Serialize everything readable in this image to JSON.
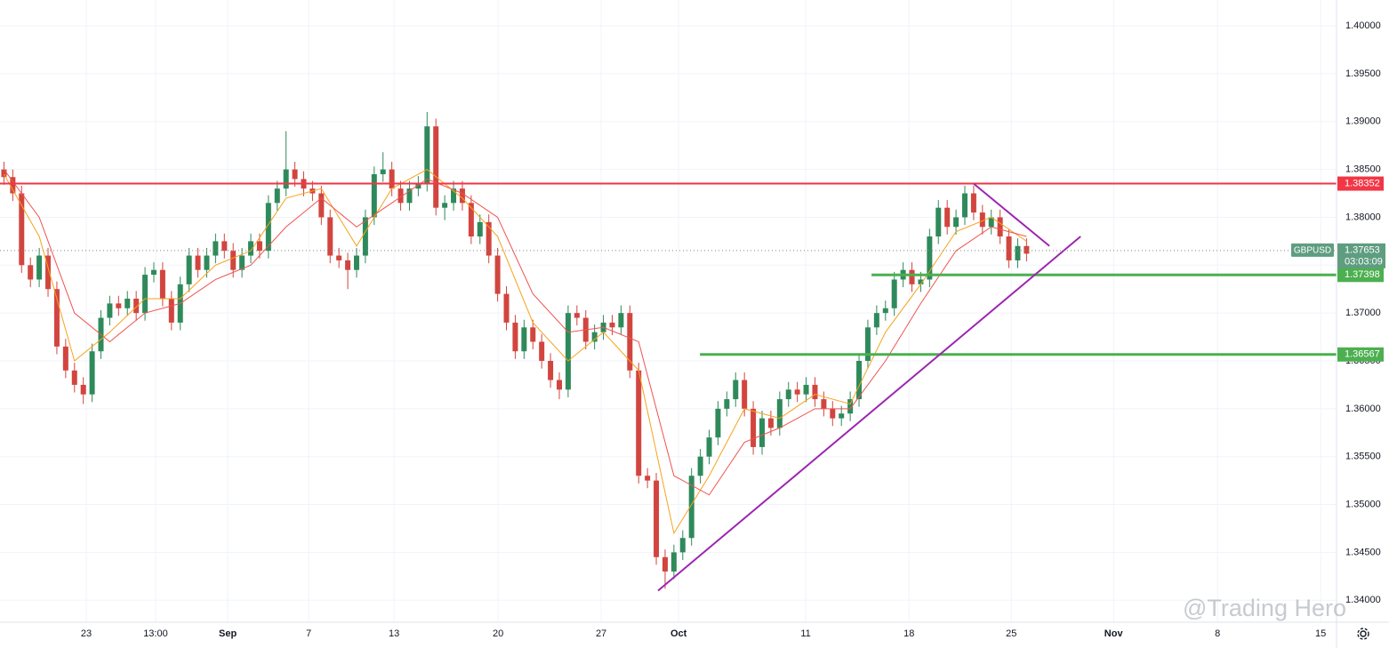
{
  "chart_data": {
    "type": "candlestick",
    "symbol": "GBPUSD",
    "countdown": "03:03:09",
    "last_price": 1.37653,
    "watermark": "@Trading Hero",
    "xlim": [
      17.13,
      108.1
    ],
    "ylim": [
      1.3377,
      1.4027
    ],
    "grid": true,
    "up_color": "#2f8a5b",
    "down_color": "#d2453f",
    "xticks": [
      {
        "value": 23,
        "label": "23"
      },
      {
        "value": 27.72,
        "label": "13:00"
      },
      {
        "value": 32.63,
        "label": "Sep"
      },
      {
        "value": 38.14,
        "label": "7"
      },
      {
        "value": 43.95,
        "label": "13"
      },
      {
        "value": 51.03,
        "label": "20"
      },
      {
        "value": 58.05,
        "label": "27"
      },
      {
        "value": 63.32,
        "label": "Oct"
      },
      {
        "value": 71.97,
        "label": "11"
      },
      {
        "value": 79,
        "label": "18"
      },
      {
        "value": 85.96,
        "label": "25"
      },
      {
        "value": 92.92,
        "label": "Nov"
      },
      {
        "value": 100,
        "label": "8"
      },
      {
        "value": 107.02,
        "label": "15"
      }
    ],
    "yticks": [
      {
        "value": 1.34,
        "label": "1.34000"
      },
      {
        "value": 1.345,
        "label": "1.34500"
      },
      {
        "value": 1.35,
        "label": "1.35000"
      },
      {
        "value": 1.355,
        "label": "1.35500"
      },
      {
        "value": 1.36,
        "label": "1.36000"
      },
      {
        "value": 1.365,
        "label": "1.36500"
      },
      {
        "value": 1.37,
        "label": "1.37000"
      },
      {
        "value": 1.375,
        "label": "1.37500"
      },
      {
        "value": 1.38,
        "label": "1.38000"
      },
      {
        "value": 1.385,
        "label": "1.38500"
      },
      {
        "value": 1.39,
        "label": "1.39000"
      },
      {
        "value": 1.395,
        "label": "1.39500"
      },
      {
        "value": 1.4,
        "label": "1.40000"
      }
    ],
    "candles": [
      [
        17.4,
        1.385,
        1.3858,
        1.3834,
        1.3842
      ],
      [
        18,
        1.3842,
        1.385,
        1.3817,
        1.3825
      ],
      [
        18.6,
        1.3825,
        1.3833,
        1.3742,
        1.375
      ],
      [
        19.2,
        1.375,
        1.3758,
        1.3727,
        1.3735
      ],
      [
        19.8,
        1.3735,
        1.3768,
        1.3727,
        1.376
      ],
      [
        20.4,
        1.376,
        1.3768,
        1.3717,
        1.3725
      ],
      [
        21,
        1.3725,
        1.3733,
        1.3657,
        1.3665
      ],
      [
        21.6,
        1.3665,
        1.3673,
        1.3632,
        1.364
      ],
      [
        22.2,
        1.364,
        1.3648,
        1.3617,
        1.3625
      ],
      [
        22.8,
        1.3625,
        1.3633,
        1.3605,
        1.3615
      ],
      [
        23.4,
        1.3615,
        1.3668,
        1.3607,
        1.366
      ],
      [
        24,
        1.366,
        1.3703,
        1.3652,
        1.3695
      ],
      [
        24.6,
        1.3695,
        1.3718,
        1.3687,
        1.371
      ],
      [
        25.2,
        1.371,
        1.3718,
        1.3697,
        1.3705
      ],
      [
        25.8,
        1.3705,
        1.3723,
        1.3697,
        1.3715
      ],
      [
        26.4,
        1.3715,
        1.3723,
        1.3692,
        1.37
      ],
      [
        27,
        1.37,
        1.3748,
        1.3692,
        1.374
      ],
      [
        27.6,
        1.374,
        1.3753,
        1.3732,
        1.3745
      ],
      [
        28.2,
        1.3745,
        1.3753,
        1.3707,
        1.3715
      ],
      [
        28.8,
        1.3715,
        1.3723,
        1.3682,
        1.369
      ],
      [
        29.4,
        1.369,
        1.3738,
        1.3682,
        1.373
      ],
      [
        30,
        1.373,
        1.3768,
        1.3722,
        1.376
      ],
      [
        30.6,
        1.376,
        1.3768,
        1.3737,
        1.3745
      ],
      [
        31.2,
        1.3745,
        1.3768,
        1.3737,
        1.376
      ],
      [
        31.8,
        1.376,
        1.3783,
        1.3752,
        1.3775
      ],
      [
        32.4,
        1.3775,
        1.3783,
        1.3757,
        1.3765
      ],
      [
        33,
        1.3765,
        1.3773,
        1.3737,
        1.3745
      ],
      [
        33.6,
        1.3745,
        1.3768,
        1.3737,
        1.376
      ],
      [
        34.2,
        1.376,
        1.3783,
        1.3752,
        1.3775
      ],
      [
        34.8,
        1.3775,
        1.3783,
        1.3757,
        1.3765
      ],
      [
        35.4,
        1.3765,
        1.3823,
        1.3757,
        1.3815
      ],
      [
        36,
        1.3815,
        1.3838,
        1.3807,
        1.383
      ],
      [
        36.6,
        1.383,
        1.389,
        1.3822,
        1.385
      ],
      [
        37.2,
        1.385,
        1.3858,
        1.3832,
        1.384
      ],
      [
        37.8,
        1.384,
        1.3848,
        1.3822,
        1.383
      ],
      [
        38.4,
        1.383,
        1.3838,
        1.3817,
        1.3825
      ],
      [
        39,
        1.3825,
        1.3833,
        1.3792,
        1.38
      ],
      [
        39.6,
        1.38,
        1.3808,
        1.3752,
        1.376
      ],
      [
        40.2,
        1.376,
        1.3768,
        1.3747,
        1.3755
      ],
      [
        40.8,
        1.3755,
        1.3763,
        1.3725,
        1.3745
      ],
      [
        41.4,
        1.3745,
        1.3768,
        1.3737,
        1.376
      ],
      [
        42,
        1.376,
        1.3808,
        1.3752,
        1.38
      ],
      [
        42.6,
        1.38,
        1.3853,
        1.3792,
        1.3845
      ],
      [
        43.2,
        1.3845,
        1.3868,
        1.3837,
        1.385
      ],
      [
        43.8,
        1.385,
        1.3858,
        1.3822,
        1.383
      ],
      [
        44.4,
        1.383,
        1.3838,
        1.3807,
        1.3815
      ],
      [
        45,
        1.3815,
        1.3838,
        1.3807,
        1.383
      ],
      [
        45.6,
        1.383,
        1.3843,
        1.3822,
        1.3835
      ],
      [
        46.2,
        1.3835,
        1.391,
        1.3827,
        1.3895
      ],
      [
        46.8,
        1.3895,
        1.3903,
        1.3802,
        1.381
      ],
      [
        47.4,
        1.381,
        1.3823,
        1.3797,
        1.3815
      ],
      [
        48,
        1.3815,
        1.3838,
        1.3807,
        1.383
      ],
      [
        48.6,
        1.383,
        1.3838,
        1.3807,
        1.3815
      ],
      [
        49.2,
        1.3815,
        1.3823,
        1.3772,
        1.378
      ],
      [
        49.8,
        1.378,
        1.3803,
        1.3772,
        1.3795
      ],
      [
        50.4,
        1.3795,
        1.3803,
        1.3752,
        1.376
      ],
      [
        51,
        1.376,
        1.3768,
        1.3712,
        1.372
      ],
      [
        51.6,
        1.372,
        1.3728,
        1.3682,
        1.369
      ],
      [
        52.2,
        1.369,
        1.3698,
        1.3652,
        1.366
      ],
      [
        52.8,
        1.366,
        1.3693,
        1.3652,
        1.3685
      ],
      [
        53.4,
        1.3685,
        1.3693,
        1.3662,
        1.367
      ],
      [
        54,
        1.367,
        1.3678,
        1.3642,
        1.365
      ],
      [
        54.6,
        1.365,
        1.3658,
        1.3622,
        1.363
      ],
      [
        55.2,
        1.363,
        1.3638,
        1.361,
        1.362
      ],
      [
        55.8,
        1.362,
        1.3708,
        1.3612,
        1.37
      ],
      [
        56.4,
        1.37,
        1.3708,
        1.3687,
        1.3695
      ],
      [
        57,
        1.3695,
        1.3703,
        1.3662,
        1.367
      ],
      [
        57.6,
        1.367,
        1.3688,
        1.3662,
        1.368
      ],
      [
        58.2,
        1.368,
        1.3698,
        1.3672,
        1.369
      ],
      [
        58.8,
        1.369,
        1.3698,
        1.3677,
        1.3685
      ],
      [
        59.4,
        1.3685,
        1.3708,
        1.3677,
        1.37
      ],
      [
        60,
        1.37,
        1.3708,
        1.3632,
        1.364
      ],
      [
        60.6,
        1.364,
        1.3648,
        1.3522,
        1.353
      ],
      [
        61.2,
        1.353,
        1.3538,
        1.3517,
        1.3525
      ],
      [
        61.8,
        1.3525,
        1.3533,
        1.3437,
        1.3445
      ],
      [
        62.4,
        1.3445,
        1.3453,
        1.3412,
        1.343
      ],
      [
        63,
        1.343,
        1.3458,
        1.3422,
        1.345
      ],
      [
        63.6,
        1.345,
        1.3473,
        1.3442,
        1.3465
      ],
      [
        64.2,
        1.3465,
        1.3538,
        1.3457,
        1.353
      ],
      [
        64.8,
        1.353,
        1.3558,
        1.3522,
        1.355
      ],
      [
        65.4,
        1.355,
        1.3578,
        1.3542,
        1.357
      ],
      [
        66,
        1.357,
        1.3608,
        1.3562,
        1.36
      ],
      [
        66.6,
        1.36,
        1.3618,
        1.3592,
        1.361
      ],
      [
        67.2,
        1.361,
        1.3638,
        1.3602,
        1.363
      ],
      [
        67.8,
        1.363,
        1.3638,
        1.3592,
        1.36
      ],
      [
        68.4,
        1.36,
        1.3608,
        1.3552,
        1.356
      ],
      [
        69,
        1.356,
        1.3598,
        1.3552,
        1.359
      ],
      [
        69.6,
        1.359,
        1.3598,
        1.3572,
        1.358
      ],
      [
        70.2,
        1.358,
        1.3618,
        1.3572,
        1.361
      ],
      [
        70.8,
        1.361,
        1.3628,
        1.3602,
        1.362
      ],
      [
        71.4,
        1.362,
        1.3628,
        1.3607,
        1.3615
      ],
      [
        72,
        1.3615,
        1.3633,
        1.3607,
        1.3625
      ],
      [
        72.6,
        1.3625,
        1.3633,
        1.3602,
        1.361
      ],
      [
        73.2,
        1.361,
        1.3618,
        1.3592,
        1.36
      ],
      [
        73.8,
        1.36,
        1.3608,
        1.3582,
        1.359
      ],
      [
        74.4,
        1.359,
        1.3603,
        1.3582,
        1.3595
      ],
      [
        75,
        1.3595,
        1.3618,
        1.3587,
        1.361
      ],
      [
        75.6,
        1.361,
        1.3658,
        1.3602,
        1.365
      ],
      [
        76.2,
        1.365,
        1.3693,
        1.3642,
        1.3685
      ],
      [
        76.8,
        1.3685,
        1.3708,
        1.3677,
        1.37
      ],
      [
        77.4,
        1.37,
        1.3713,
        1.3692,
        1.3705
      ],
      [
        78,
        1.3705,
        1.3743,
        1.3697,
        1.3735
      ],
      [
        78.6,
        1.3735,
        1.3753,
        1.3727,
        1.3745
      ],
      [
        79.2,
        1.3745,
        1.3753,
        1.3722,
        1.373
      ],
      [
        79.8,
        1.373,
        1.3743,
        1.3722,
        1.3735
      ],
      [
        80.4,
        1.3735,
        1.3788,
        1.3727,
        1.378
      ],
      [
        81,
        1.378,
        1.3818,
        1.3772,
        1.381
      ],
      [
        81.6,
        1.381,
        1.3818,
        1.3782,
        1.379
      ],
      [
        82.2,
        1.379,
        1.3808,
        1.3782,
        1.38
      ],
      [
        82.8,
        1.38,
        1.3833,
        1.3792,
        1.3825
      ],
      [
        83.4,
        1.3825,
        1.3833,
        1.3797,
        1.3805
      ],
      [
        84,
        1.3805,
        1.3813,
        1.3782,
        1.379
      ],
      [
        84.6,
        1.379,
        1.3808,
        1.3782,
        1.38
      ],
      [
        85.2,
        1.38,
        1.3808,
        1.3772,
        1.378
      ],
      [
        85.8,
        1.378,
        1.3788,
        1.3747,
        1.3755
      ],
      [
        86.4,
        1.3755,
        1.3778,
        1.3747,
        1.377
      ],
      [
        87,
        1.377,
        1.3778,
        1.3754,
        1.3762
      ]
    ],
    "lines": [
      {
        "color": "#f7a21b",
        "x": [
          17.4,
          19.8,
          22.2,
          24.6,
          27,
          29.4,
          31.8,
          34.2,
          36.6,
          39,
          41.4,
          43.8,
          46.2,
          48.6,
          51,
          53.4,
          55.8,
          58.2,
          60.6,
          63,
          65.4,
          67.8,
          70.2,
          72.6,
          75,
          77.4,
          79.8,
          82.2,
          84.6,
          87
        ],
        "values": [
          1.3845,
          1.378,
          1.365,
          1.368,
          1.3715,
          1.3715,
          1.375,
          1.3765,
          1.382,
          1.383,
          1.377,
          1.383,
          1.385,
          1.382,
          1.378,
          1.369,
          1.365,
          1.368,
          1.364,
          1.347,
          1.353,
          1.36,
          1.359,
          1.3615,
          1.3605,
          1.368,
          1.373,
          1.3785,
          1.38,
          1.3775
        ]
      },
      {
        "color": "#ef5350",
        "x": [
          17.4,
          19.8,
          22.2,
          24.6,
          27,
          29.4,
          31.8,
          34.2,
          36.6,
          39,
          41.4,
          43.8,
          46.2,
          48.6,
          51,
          53.4,
          55.8,
          58.2,
          60.6,
          63,
          65.4,
          67.8,
          70.2,
          72.6,
          75,
          77.4,
          79.8,
          82.2,
          84.6,
          87
        ],
        "values": [
          1.385,
          1.38,
          1.37,
          1.367,
          1.37,
          1.371,
          1.3735,
          1.375,
          1.379,
          1.382,
          1.379,
          1.3815,
          1.384,
          1.3825,
          1.38,
          1.372,
          1.368,
          1.3685,
          1.367,
          1.353,
          1.351,
          1.3565,
          1.358,
          1.36,
          1.36,
          1.365,
          1.371,
          1.3765,
          1.379,
          1.378
        ]
      }
    ],
    "levels": [
      {
        "value": 1.38352,
        "color": "#f23645",
        "x_start": 17.13
      },
      {
        "value": 1.37398,
        "color": "#4caf50",
        "x_start": 76.45
      },
      {
        "value": 1.36567,
        "color": "#4caf50",
        "x_start": 64.77
      }
    ],
    "trendlines": [
      {
        "color": "#9c27b0",
        "x": [
          61.92,
          90.68
        ],
        "values": [
          1.341,
          1.378
        ]
      },
      {
        "color": "#9c27b0",
        "x": [
          83.41,
          88.56
        ],
        "values": [
          1.3835,
          1.377
        ]
      }
    ]
  }
}
